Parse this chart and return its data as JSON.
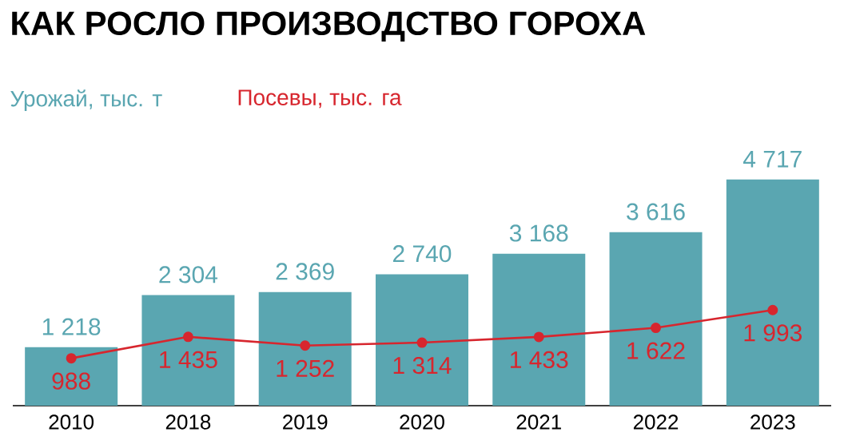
{
  "chart_data": {
    "type": "bar",
    "title": "КАК РОСЛО ПРОИЗВОДСТВО ГОРОХА",
    "categories": [
      "2010",
      "2018",
      "2019",
      "2020",
      "2021",
      "2022",
      "2023"
    ],
    "series": [
      {
        "name": "Урожай, тыс. т",
        "color": "#5aa6b1",
        "values": [
          1218,
          2304,
          2369,
          2740,
          3168,
          3616,
          4717
        ],
        "value_labels": [
          "1 218",
          "2 304",
          "2 369",
          "2 740",
          "3 168",
          "3 616",
          "4 717"
        ]
      },
      {
        "name": "Посевы, тыс. га",
        "type": "line",
        "color": "#d7262e",
        "marker": "circle",
        "values": [
          988,
          1435,
          1252,
          1314,
          1433,
          1622,
          1993
        ],
        "value_labels": [
          "988",
          "1 435",
          "1 252",
          "1 314",
          "1 433",
          "1 622",
          "1 993"
        ]
      }
    ],
    "legend": "top left"
  }
}
